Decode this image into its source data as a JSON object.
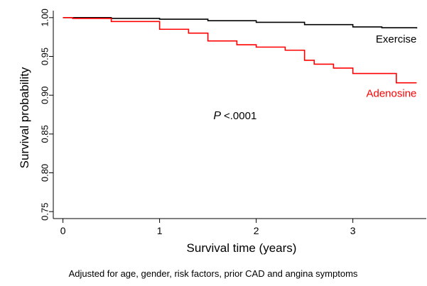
{
  "chart_data": {
    "type": "line",
    "step": true,
    "x_label": "Survival time (years)",
    "y_label": "Survival probability",
    "footnote": "Adjusted for age, gender, risk factors, prior CAD and angina symptoms",
    "annotation": {
      "italic": "P",
      "text": "<.0001"
    },
    "xlim": [
      -0.1,
      3.76
    ],
    "ylim": [
      0.741,
      1.009
    ],
    "xticks": [
      0,
      1,
      2,
      3
    ],
    "yticks": [
      {
        "value": 0.75,
        "label": "0.75"
      },
      {
        "value": 0.8,
        "label": "0.80"
      },
      {
        "value": 0.85,
        "label": "0.85"
      },
      {
        "value": 0.9,
        "label": "0.90"
      },
      {
        "value": 0.95,
        "label": "0.95"
      },
      {
        "value": 1.0,
        "label": "1.00"
      }
    ],
    "series": [
      {
        "name": "Exercise",
        "color": "#000000",
        "x": [
          0,
          0.5,
          1,
          1.5,
          2,
          2.5,
          3,
          3.3,
          3.66
        ],
        "values": [
          1.0,
          0.999,
          0.998,
          0.996,
          0.994,
          0.991,
          0.988,
          0.987,
          0.986
        ]
      },
      {
        "name": "Adenosine",
        "color": "#ff0000",
        "x": [
          0,
          0.1,
          0.5,
          1.0,
          1.3,
          1.5,
          1.8,
          2.0,
          2.3,
          2.5,
          2.6,
          2.8,
          3.0,
          3.45,
          3.66
        ],
        "values": [
          1.0,
          0.999,
          0.995,
          0.985,
          0.98,
          0.97,
          0.965,
          0.962,
          0.958,
          0.945,
          0.94,
          0.935,
          0.928,
          0.916,
          0.916
        ]
      }
    ]
  }
}
